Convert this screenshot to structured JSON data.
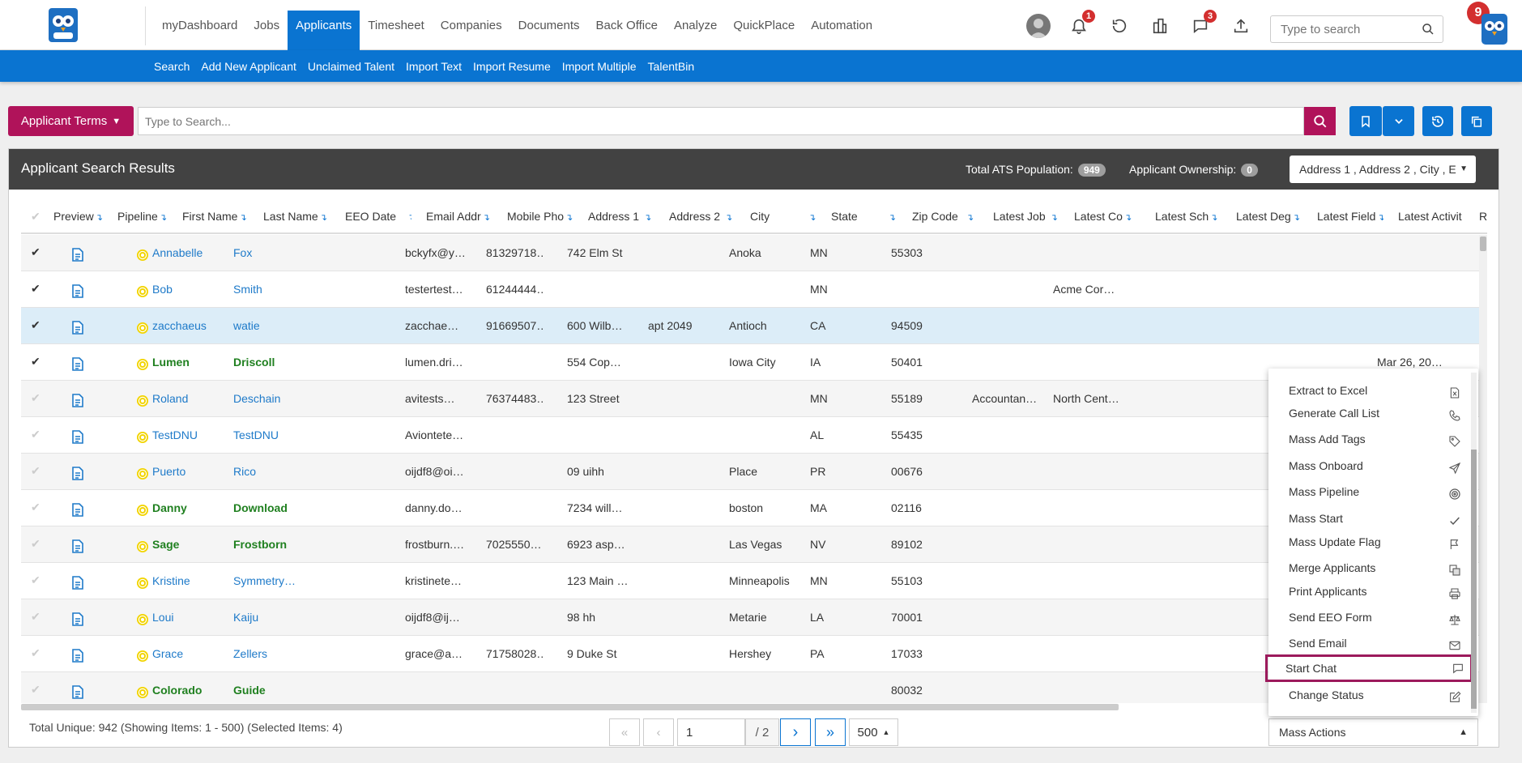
{
  "top_nav": {
    "items": [
      "myDashboard",
      "Jobs",
      "Applicants",
      "Timesheet",
      "Companies",
      "Documents",
      "Back Office",
      "Analyze",
      "QuickPlace",
      "Automation"
    ],
    "active": "Applicants"
  },
  "notifications": {
    "bell_count": "1",
    "chat_count": "3",
    "profile_badge": "9"
  },
  "top_search": {
    "placeholder": "Type to search"
  },
  "sub_nav": [
    "Search",
    "Add New Applicant",
    "Unclaimed Talent",
    "Import Text",
    "Import Resume",
    "Import Multiple",
    "TalentBin"
  ],
  "search_bar": {
    "terms_label": "Applicant Terms",
    "placeholder": "Type to Search..."
  },
  "panel": {
    "title": "Applicant Search Results",
    "total_ats_label": "Total ATS Population:",
    "total_ats_value": "949",
    "ownership_label": "Applicant Ownership:",
    "ownership_value": "0",
    "columns_select": "Address 1 , Address 2 , City , E"
  },
  "columns": [
    "Preview",
    "Pipeline",
    "First Name",
    "Last Name",
    "EEO Date",
    "Email Addr",
    "Mobile Pho",
    "Address 1",
    "Address 2",
    "City",
    "State",
    "Zip Code",
    "Latest Job",
    "Latest Co",
    "Latest Sch",
    "Latest Deg",
    "Latest Field",
    "Latest Activit",
    "R"
  ],
  "rows": [
    {
      "checked": true,
      "first": "Annabelle",
      "last": "Fox",
      "style": "link",
      "email": "bckyfx@y…",
      "mobile": "81329718…",
      "addr1": "742 Elm St",
      "addr2": "",
      "city": "Anoka",
      "state": "MN",
      "zip": "55303",
      "job": "",
      "company": "",
      "activity": ""
    },
    {
      "checked": true,
      "first": "Bob",
      "last": "Smith",
      "style": "link",
      "email": "testertest…",
      "mobile": "61244444…",
      "addr1": "",
      "addr2": "",
      "city": "",
      "state": "MN",
      "zip": "",
      "job": "",
      "company": "Acme Cor…",
      "activity": ""
    },
    {
      "checked": true,
      "first": "zacchaeus",
      "last": "watie",
      "style": "link",
      "email": "zacchae…",
      "mobile": "91669507…",
      "addr1": "600 Wilb…",
      "addr2": "apt 2049",
      "city": "Antioch",
      "state": "CA",
      "zip": "94509",
      "job": "",
      "company": "",
      "activity": ""
    },
    {
      "checked": true,
      "first": "Lumen",
      "last": "Driscoll",
      "style": "green",
      "email": "lumen.dri…",
      "mobile": "",
      "addr1": "554 Cop…",
      "addr2": "",
      "city": "Iowa City",
      "state": "IA",
      "zip": "50401",
      "job": "",
      "company": "",
      "activity": "Mar 26, 20…"
    },
    {
      "checked": false,
      "first": "Roland",
      "last": "Deschain",
      "style": "link",
      "email": "avitests…",
      "mobile": "76374483…",
      "addr1": "123 Street",
      "addr2": "",
      "city": "",
      "state": "MN",
      "zip": "55189",
      "job": "Accountan…",
      "company": "North Cent…",
      "activity": ""
    },
    {
      "checked": false,
      "first": "TestDNU",
      "last": "TestDNU",
      "style": "link",
      "email": "Aviontete…",
      "mobile": "",
      "addr1": "",
      "addr2": "",
      "city": "",
      "state": "AL",
      "zip": "55435",
      "job": "",
      "company": "",
      "activity": ""
    },
    {
      "checked": false,
      "first": "Puerto",
      "last": "Rico",
      "style": "link",
      "email": "oijdf8@oi…",
      "mobile": "",
      "addr1": "09 uihh",
      "addr2": "",
      "city": "Place",
      "state": "PR",
      "zip": "00676",
      "job": "",
      "company": "",
      "activity": ""
    },
    {
      "checked": false,
      "first": "Danny",
      "last": "Download",
      "style": "green",
      "email": "danny.do…",
      "mobile": "",
      "addr1": "7234 will…",
      "addr2": "",
      "city": "boston",
      "state": "MA",
      "zip": "02116",
      "job": "",
      "company": "",
      "activity": ""
    },
    {
      "checked": false,
      "first": "Sage",
      "last": "Frostborn",
      "style": "green",
      "email": "frostburn.…",
      "mobile": "7025550…",
      "addr1": "6923 asp…",
      "addr2": "",
      "city": "Las Vegas",
      "state": "NV",
      "zip": "89102",
      "job": "",
      "company": "",
      "activity": ""
    },
    {
      "checked": false,
      "first": "Kristine",
      "last": "Symmetry…",
      "style": "link",
      "email": "kristinete…",
      "mobile": "",
      "addr1": "123 Main …",
      "addr2": "",
      "city": "Minneapolis",
      "state": "MN",
      "zip": "55103",
      "job": "",
      "company": "",
      "activity": ""
    },
    {
      "checked": false,
      "first": "Loui",
      "last": "Kaiju",
      "style": "link",
      "email": "oijdf8@ij…",
      "mobile": "",
      "addr1": "98 hh",
      "addr2": "",
      "city": "Metarie",
      "state": "LA",
      "zip": "70001",
      "job": "",
      "company": "",
      "activity": ""
    },
    {
      "checked": false,
      "first": "Grace",
      "last": "Zellers",
      "style": "link",
      "email": "grace@a…",
      "mobile": "71758028…",
      "addr1": "9 Duke St",
      "addr2": "",
      "city": "Hershey",
      "state": "PA",
      "zip": "17033",
      "job": "",
      "company": "",
      "activity": ""
    },
    {
      "checked": false,
      "first": "Colorado",
      "last": "Guide",
      "style": "green",
      "email": "",
      "mobile": "",
      "addr1": "",
      "addr2": "",
      "city": "",
      "state": "",
      "zip": "80032",
      "job": "",
      "company": "",
      "activity": ""
    }
  ],
  "footer": {
    "summary": "Total Unique: 942 (Showing Items: 1 - 500) (Selected Items: 4)",
    "page_value": "1",
    "page_total": "/ 2",
    "page_size": "500",
    "mass_actions": "Mass Actions"
  },
  "mass_actions_menu": [
    {
      "label": "Extract to Excel",
      "icon": "excel-icon"
    },
    {
      "label": "Generate Call List",
      "icon": "phone-icon"
    },
    {
      "label": "Mass Add Tags",
      "icon": "tag-icon"
    },
    {
      "label": "Mass Onboard",
      "icon": "send-icon"
    },
    {
      "label": "Mass Pipeline",
      "icon": "target-icon"
    },
    {
      "label": "Mass Start",
      "icon": "check-icon"
    },
    {
      "label": "Mass Update Flag",
      "icon": "flag-icon"
    },
    {
      "label": "Merge Applicants",
      "icon": "merge-icon"
    },
    {
      "label": "Print Applicants",
      "icon": "printer-icon"
    },
    {
      "label": "Send EEO Form",
      "icon": "scale-icon"
    },
    {
      "label": "Send Email",
      "icon": "mail-icon"
    },
    {
      "label": "Start Chat",
      "icon": "chat-icon"
    },
    {
      "label": "Change Status",
      "icon": "edit-icon"
    }
  ],
  "colors": {
    "brand_blue": "#0a74d1",
    "accent_magenta": "#b0135a",
    "header_dark": "#424242",
    "link": "#1e7ac9",
    "green_name": "#208020"
  }
}
